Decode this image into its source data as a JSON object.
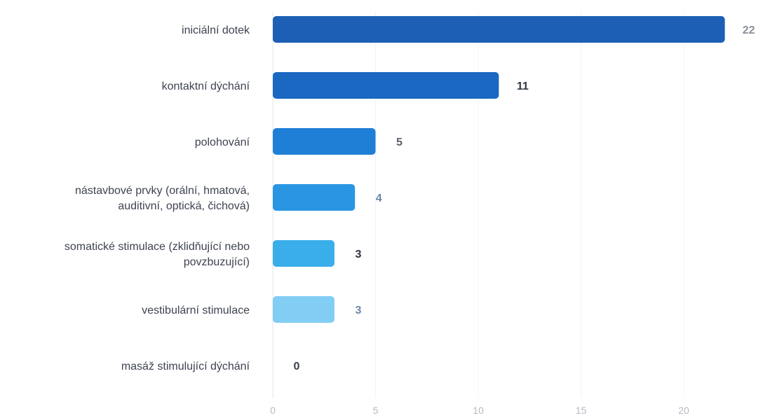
{
  "chart_data": {
    "type": "bar",
    "orientation": "horizontal",
    "categories": [
      [
        "iniciální dotek"
      ],
      [
        "kontaktní dýchání"
      ],
      [
        "polohování"
      ],
      [
        "nástavbové prvky (orální, hmatová,",
        "auditivní, optická, čichová)"
      ],
      [
        "somatické stimulace (zklidňující nebo",
        "povzbuzující)"
      ],
      [
        "vestibulární stimulace"
      ],
      [
        "masáž stimulující dýchání"
      ]
    ],
    "values": [
      22,
      11,
      5,
      4,
      3,
      3,
      0
    ],
    "data_labels": [
      "22",
      "11",
      "5",
      "4",
      "3",
      "3",
      "0"
    ],
    "bar_colors": [
      "#1c5fb5",
      "#1a68c2",
      "#1f7fd6",
      "#2a96e3",
      "#3aaeea",
      "#82cdf4",
      "#a9dbf7"
    ],
    "value_label_colors": [
      "#8a8f98",
      "#2e3440",
      "#59606b",
      "#6d8aa8",
      "#2e3440",
      "#6d8aa8",
      "#3a404c"
    ],
    "xlim": [
      0,
      22.5
    ],
    "xticks": [
      0,
      5,
      10,
      15,
      20
    ],
    "xtick_labels": [
      "0",
      "5",
      "10",
      "15",
      "20"
    ],
    "grid": true,
    "title": "",
    "xlabel": "",
    "ylabel": ""
  }
}
